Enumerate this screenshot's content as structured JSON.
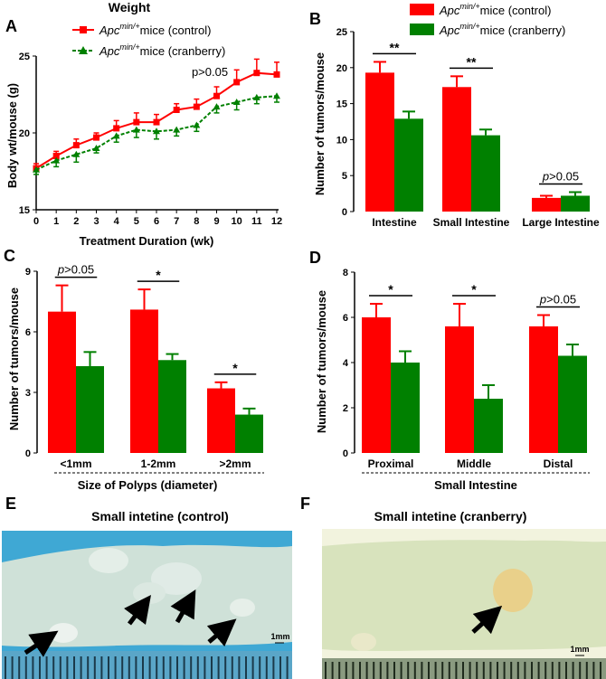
{
  "colors": {
    "control": "#ff0000",
    "cranberry": "#008000",
    "photo_bg_e": "#4fb3d8",
    "photo_tissue_e": "#cfe0d6",
    "photo_bg_f": "#f4f4dc",
    "photo_tissue_f": "#d9e3b9"
  },
  "panel_labels": {
    "A": "A",
    "B": "B",
    "C": "C",
    "D": "D",
    "E": "E",
    "F": "F"
  },
  "legend_a": {
    "sup": "min/+",
    "base": "Apc",
    "control": "mice (control)",
    "cranberry": "mice (cranberry)"
  },
  "legend_b": {
    "sup": "min/+",
    "base": "Apc",
    "control": "mice (control)",
    "cranberry": "mice (cranberry)"
  },
  "chart_data": [
    {
      "id": "A",
      "type": "line",
      "title": "Weight",
      "xlabel": "Treatment Duration (wk)",
      "ylabel": "Body wt/mouse (g)",
      "xlim": [
        0,
        12
      ],
      "ylim": [
        15,
        25
      ],
      "xticks": [
        "0",
        "1",
        "2",
        "3",
        "4",
        "5",
        "6",
        "7",
        "8",
        "9",
        "10",
        "11",
        "12"
      ],
      "yticks": [
        "15",
        "20",
        "25"
      ],
      "annotation": "p>0.05",
      "x": [
        0,
        1,
        2,
        3,
        4,
        5,
        6,
        7,
        8,
        9,
        10,
        11,
        12
      ],
      "series": [
        {
          "name": "control",
          "values": [
            17.7,
            18.5,
            19.2,
            19.7,
            20.3,
            20.7,
            20.7,
            21.5,
            21.7,
            22.4,
            23.3,
            23.9,
            23.8
          ],
          "errors": [
            0.3,
            0.3,
            0.4,
            0.3,
            0.5,
            0.6,
            0.5,
            0.4,
            0.5,
            0.6,
            0.8,
            0.9,
            0.8
          ]
        },
        {
          "name": "cranberry",
          "values": [
            17.6,
            18.2,
            18.6,
            19.0,
            19.8,
            20.2,
            20.1,
            20.2,
            20.5,
            21.7,
            22.0,
            22.3,
            22.4
          ],
          "errors": [
            0.3,
            0.4,
            0.5,
            0.3,
            0.4,
            0.5,
            0.5,
            0.4,
            0.4,
            0.4,
            0.5,
            0.4,
            0.4
          ]
        }
      ]
    },
    {
      "id": "B",
      "type": "bar",
      "ylabel": "Number of tumors/mouse",
      "ylim": [
        0,
        25
      ],
      "yticks": [
        "0",
        "5",
        "10",
        "15",
        "20",
        "25"
      ],
      "categories": [
        "Intestine",
        "Small Intestine",
        "Large Intestine"
      ],
      "series": [
        {
          "name": "control",
          "values": [
            19.3,
            17.3,
            1.9
          ],
          "errors": [
            1.5,
            1.5,
            0.3
          ]
        },
        {
          "name": "cranberry",
          "values": [
            12.9,
            10.6,
            2.2
          ],
          "errors": [
            1.0,
            0.8,
            0.5
          ]
        }
      ],
      "significance": [
        "**",
        "**",
        "p>0.05"
      ]
    },
    {
      "id": "C",
      "type": "bar",
      "ylabel": "Number of tumors/mouse",
      "xlabel": "Size of Polyps (diameter)",
      "ylim": [
        0,
        9
      ],
      "yticks": [
        "0",
        "3",
        "6",
        "9"
      ],
      "categories": [
        "<1mm",
        "1-2mm",
        ">2mm"
      ],
      "series": [
        {
          "name": "control",
          "values": [
            7.0,
            7.1,
            3.2
          ],
          "errors": [
            1.3,
            1.0,
            0.3
          ]
        },
        {
          "name": "cranberry",
          "values": [
            4.3,
            4.6,
            1.9
          ],
          "errors": [
            0.7,
            0.3,
            0.3
          ]
        }
      ],
      "significance": [
        "p>0.05",
        "*",
        "*"
      ]
    },
    {
      "id": "D",
      "type": "bar",
      "ylabel": "Number of tumors/mouse",
      "xlabel": "Small Intestine",
      "ylim": [
        0,
        8
      ],
      "yticks": [
        "0",
        "2",
        "4",
        "6",
        "8"
      ],
      "categories": [
        "Proximal",
        "Middle",
        "Distal"
      ],
      "series": [
        {
          "name": "control",
          "values": [
            6.0,
            5.6,
            5.6
          ],
          "errors": [
            0.6,
            1.0,
            0.5
          ]
        },
        {
          "name": "cranberry",
          "values": [
            4.0,
            2.4,
            4.3
          ],
          "errors": [
            0.5,
            0.6,
            0.5
          ]
        }
      ],
      "significance": [
        "*",
        "*",
        "p>0.05"
      ]
    }
  ],
  "photos": {
    "E": {
      "title": "Small intetine (control)",
      "scale": "1mm"
    },
    "F": {
      "title": "Small intetine (cranberry)",
      "scale": "1mm"
    }
  }
}
